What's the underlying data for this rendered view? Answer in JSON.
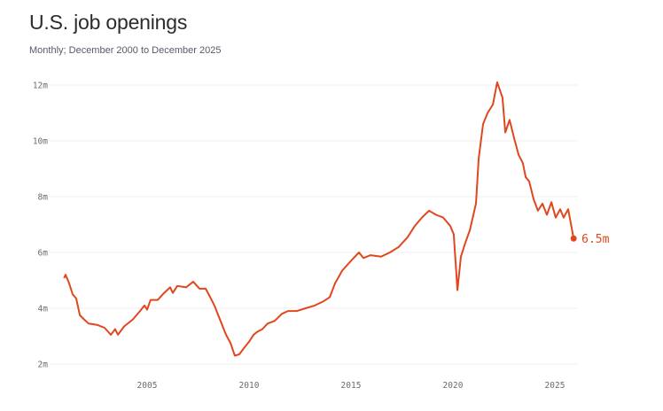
{
  "title": "U.S. job openings",
  "subtitle": "Monthly; December 2000 to December 2025",
  "colors": {
    "line": "#e0471f",
    "grid": "#efefef",
    "tick_text": "#6b6b6b"
  },
  "chart_data": {
    "type": "line",
    "title": "U.S. job openings",
    "subtitle": "Monthly; December 2000 to December 2025",
    "xlabel": "",
    "ylabel": "",
    "xlim": [
      2000.92,
      2025.92
    ],
    "ylim": [
      2,
      12
    ],
    "grid": "horizontal",
    "x_ticks": [
      2005,
      2010,
      2015,
      2020,
      2025
    ],
    "x_tick_labels": [
      "2005",
      "2010",
      "2015",
      "2020",
      "2025"
    ],
    "y_ticks": [
      2,
      4,
      6,
      8,
      10,
      12
    ],
    "y_tick_labels": [
      "2m",
      "4m",
      "6m",
      "8m",
      "10m",
      "12m"
    ],
    "end_label": "6.5m",
    "series": [
      {
        "x": [
          2000.92,
          2001.0,
          2001.17,
          2001.35,
          2001.52,
          2001.7,
          2001.91,
          2002.13,
          2002.57,
          2002.91,
          2003.22,
          2003.43,
          2003.57,
          2003.87,
          2004.3,
          2004.65,
          2004.87,
          2005.0,
          2005.17,
          2005.52,
          2005.83,
          2006.13,
          2006.26,
          2006.48,
          2006.91,
          2007.26,
          2007.57,
          2007.87,
          2008.09,
          2008.3,
          2008.57,
          2008.87,
          2009.09,
          2009.3,
          2009.52,
          2009.78,
          2010.0,
          2010.22,
          2010.39,
          2010.65,
          2010.91,
          2011.26,
          2011.61,
          2011.91,
          2012.35,
          2012.78,
          2013.22,
          2013.65,
          2013.96,
          2014.22,
          2014.57,
          2015.0,
          2015.39,
          2015.61,
          2015.96,
          2016.48,
          2016.91,
          2017.35,
          2017.78,
          2018.13,
          2018.48,
          2018.83,
          2019.17,
          2019.52,
          2019.87,
          2020.04,
          2020.22,
          2020.39,
          2020.61,
          2020.83,
          2021.13,
          2021.26,
          2021.48,
          2021.7,
          2021.96,
          2022.17,
          2022.43,
          2022.57,
          2022.78,
          2023.0,
          2023.22,
          2023.43,
          2023.57,
          2023.74,
          2023.96,
          2024.17,
          2024.39,
          2024.61,
          2024.83,
          2025.04,
          2025.26,
          2025.43,
          2025.65,
          2025.92
        ],
        "y": [
          5.08,
          5.2,
          4.9,
          4.5,
          4.35,
          3.75,
          3.6,
          3.45,
          3.4,
          3.3,
          3.05,
          3.25,
          3.05,
          3.35,
          3.6,
          3.9,
          4.1,
          3.95,
          4.3,
          4.3,
          4.55,
          4.75,
          4.55,
          4.8,
          4.75,
          4.95,
          4.7,
          4.7,
          4.4,
          4.1,
          3.6,
          3.05,
          2.75,
          2.3,
          2.35,
          2.6,
          2.8,
          3.05,
          3.15,
          3.25,
          3.45,
          3.55,
          3.8,
          3.9,
          3.9,
          4.0,
          4.1,
          4.25,
          4.4,
          4.9,
          5.35,
          5.7,
          6.0,
          5.8,
          5.9,
          5.85,
          6.0,
          6.2,
          6.55,
          6.95,
          7.25,
          7.5,
          7.35,
          7.25,
          6.95,
          6.65,
          4.65,
          5.85,
          6.35,
          6.8,
          7.75,
          9.35,
          10.6,
          11.0,
          11.3,
          12.1,
          11.55,
          10.3,
          10.75,
          10.1,
          9.5,
          9.2,
          8.7,
          8.55,
          7.9,
          7.5,
          7.75,
          7.35,
          7.8,
          7.25,
          7.55,
          7.25,
          7.55,
          6.5
        ]
      }
    ]
  }
}
